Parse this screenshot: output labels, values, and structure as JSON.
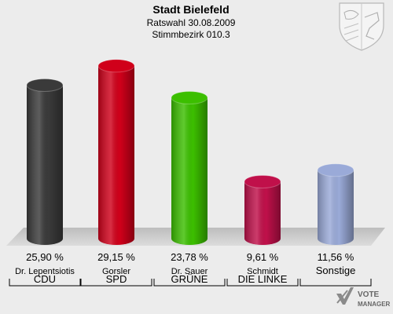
{
  "header": {
    "title": "Stadt Bielefeld",
    "line1": "Ratswahl 30.08.2009",
    "line2": "Stimmbezirk 010.3"
  },
  "brand": {
    "line1": "VOTE",
    "line2": "MANAGER"
  },
  "chart_data": {
    "type": "bar",
    "title": "Stadt Bielefeld",
    "subtitle": "Ratswahl 30.08.2009 Stimmbezirk 010.3",
    "categories": [
      "CDU",
      "SPD",
      "GRÜNE",
      "DIE LINKE",
      "Sonstige"
    ],
    "candidates": [
      "Dr. Lepentsiotis",
      "Gorsler",
      "Dr. Sauer",
      "Schmidt",
      ""
    ],
    "values": [
      25.9,
      29.15,
      23.78,
      9.61,
      11.56
    ],
    "value_labels": [
      "25,90 %",
      "29,15 %",
      "23,78 %",
      "9,61 %",
      "11,56 %"
    ],
    "colors": [
      "#3a3a3a",
      "#d0001a",
      "#3cbf00",
      "#c0104a",
      "#9aaad8"
    ],
    "ylim": [
      0,
      30
    ],
    "unit": "%",
    "grid": false,
    "legend": "none"
  }
}
